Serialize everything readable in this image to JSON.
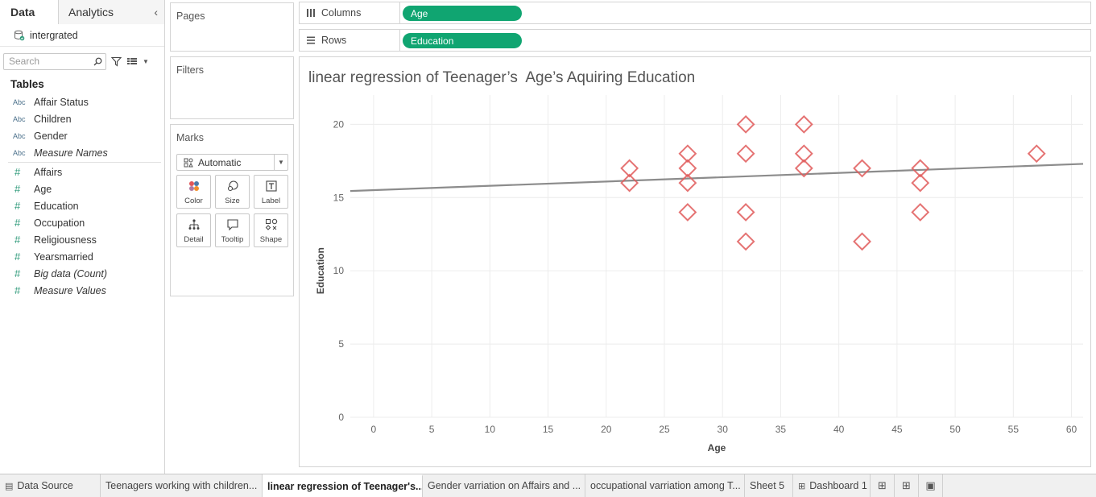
{
  "left_pane": {
    "tab_data": "Data",
    "tab_analytics": "Analytics",
    "datasource": "intergrated",
    "search_placeholder": "Search",
    "tables_header": "Tables",
    "dimensions": [
      {
        "type": "Abc",
        "label": "Affair Status",
        "italic": false
      },
      {
        "type": "Abc",
        "label": "Children",
        "italic": false
      },
      {
        "type": "Abc",
        "label": "Gender",
        "italic": false
      },
      {
        "type": "Abc",
        "label": "Measure Names",
        "italic": true
      }
    ],
    "measures": [
      {
        "type": "#",
        "label": "Affairs",
        "italic": false
      },
      {
        "type": "#",
        "label": "Age",
        "italic": false
      },
      {
        "type": "#",
        "label": "Education",
        "italic": false
      },
      {
        "type": "#",
        "label": "Occupation",
        "italic": false
      },
      {
        "type": "#",
        "label": "Religiousness",
        "italic": false
      },
      {
        "type": "#",
        "label": "Yearsmarried",
        "italic": false
      },
      {
        "type": "#",
        "label": "Big data (Count)",
        "italic": true
      },
      {
        "type": "#",
        "label": "Measure Values",
        "italic": true
      }
    ]
  },
  "cards": {
    "pages": "Pages",
    "filters": "Filters",
    "marks": "Marks",
    "mark_type": "Automatic",
    "mark_buttons": {
      "color": "Color",
      "size": "Size",
      "label": "Label",
      "detail": "Detail",
      "tooltip": "Tooltip",
      "shape": "Shape"
    }
  },
  "shelves": {
    "columns_label": "Columns",
    "columns_pill": "Age",
    "rows_label": "Rows",
    "rows_pill": "Education"
  },
  "view": {
    "title": "linear regression of Teenager’s  Age’s Aquiring Education"
  },
  "colors": {
    "pill": "#10a571",
    "marker": "#e05a5a",
    "trend": "#8c8c8c"
  },
  "chart_data": {
    "type": "scatter",
    "title": "linear regression of Teenager’s  Age’s Aquiring Education",
    "xlabel": "Age",
    "ylabel": "Education",
    "xlim": [
      -2,
      61
    ],
    "ylim": [
      0,
      22
    ],
    "x_ticks": [
      0,
      5,
      10,
      15,
      20,
      25,
      30,
      35,
      40,
      45,
      50,
      55,
      60
    ],
    "y_ticks": [
      0,
      5,
      10,
      15,
      20
    ],
    "marker": "diamond",
    "grid": true,
    "points": [
      {
        "x": 22,
        "y": 17
      },
      {
        "x": 22,
        "y": 16
      },
      {
        "x": 27,
        "y": 18
      },
      {
        "x": 27,
        "y": 17
      },
      {
        "x": 27,
        "y": 16
      },
      {
        "x": 27,
        "y": 14
      },
      {
        "x": 32,
        "y": 20
      },
      {
        "x": 32,
        "y": 18
      },
      {
        "x": 32,
        "y": 14
      },
      {
        "x": 32,
        "y": 12
      },
      {
        "x": 37,
        "y": 20
      },
      {
        "x": 37,
        "y": 18
      },
      {
        "x": 37,
        "y": 17
      },
      {
        "x": 42,
        "y": 17
      },
      {
        "x": 42,
        "y": 12
      },
      {
        "x": 47,
        "y": 17
      },
      {
        "x": 47,
        "y": 16
      },
      {
        "x": 47,
        "y": 14
      },
      {
        "x": 57,
        "y": 18
      }
    ],
    "trend_line": {
      "x": [
        -2,
        61
      ],
      "y": [
        15.45,
        17.3
      ]
    }
  },
  "bottom_tabs": [
    {
      "label": "Data Source",
      "icon": "database-icon",
      "active": false
    },
    {
      "label": "Teenagers working with children...",
      "icon": "",
      "active": false
    },
    {
      "label": "linear regression of Teenager's...",
      "icon": "",
      "active": true
    },
    {
      "label": "Gender varriation on Affairs and ...",
      "icon": "",
      "active": false
    },
    {
      "label": "occupational varriation among T...",
      "icon": "",
      "active": false
    },
    {
      "label": "Sheet 5",
      "icon": "",
      "active": false
    },
    {
      "label": "Dashboard 1",
      "icon": "dashboard-icon",
      "active": false
    }
  ]
}
